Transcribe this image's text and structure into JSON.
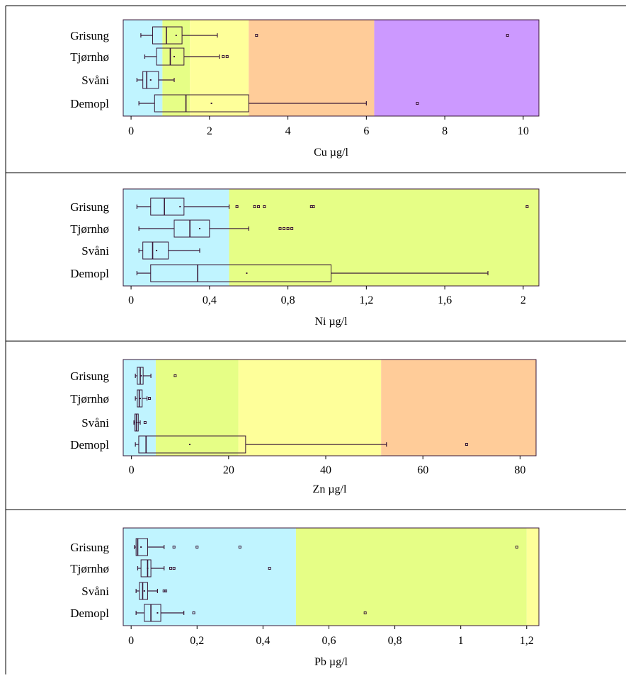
{
  "colors": {
    "blue": "#c0f4ff",
    "green": "#e6fe86",
    "yellow": "#feff9a",
    "orange": "#ffcc99",
    "purple": "#cc99ff",
    "box_stroke": "#3a1838"
  },
  "chart_data": [
    {
      "type": "box",
      "xlabel": "Cu µg/l",
      "xlim": [
        -0.2,
        10.4
      ],
      "ticks": [
        0,
        2,
        4,
        6,
        8,
        10
      ],
      "tick_labels": [
        "0",
        "2",
        "4",
        "6",
        "8",
        "10"
      ],
      "bands": [
        {
          "from": -0.2,
          "to": 0.8,
          "color": "blue"
        },
        {
          "from": 0.8,
          "to": 1.5,
          "color": "green"
        },
        {
          "from": 1.5,
          "to": 3.0,
          "color": "yellow"
        },
        {
          "from": 3.0,
          "to": 6.2,
          "color": "orange"
        },
        {
          "from": 6.2,
          "to": 10.4,
          "color": "purple"
        }
      ],
      "categories": [
        {
          "label": "Grisung",
          "whisker_low": 0.25,
          "q1": 0.55,
          "median": 0.9,
          "q3": 1.3,
          "whisker_high": 2.2,
          "mean": 1.15,
          "outliers": [
            3.2,
            9.6
          ]
        },
        {
          "label": "Tjørnhø",
          "whisker_low": 0.35,
          "q1": 0.65,
          "median": 1.0,
          "q3": 1.35,
          "whisker_high": 2.25,
          "mean": 1.1,
          "outliers": [
            2.35,
            2.45
          ]
        },
        {
          "label": "Svåni",
          "whisker_low": 0.15,
          "q1": 0.3,
          "median": 0.4,
          "q3": 0.7,
          "whisker_high": 1.1,
          "mean": 0.5,
          "outliers": []
        },
        {
          "label": "Demopl",
          "whisker_low": 0.2,
          "q1": 0.6,
          "median": 1.4,
          "q3": 3.0,
          "whisker_high": 6.0,
          "mean": 2.05,
          "outliers": [
            7.3
          ]
        }
      ]
    },
    {
      "type": "box",
      "xlabel": "Ni µg/l",
      "xlim": [
        -0.04,
        2.08
      ],
      "ticks": [
        0,
        0.4,
        0.8,
        1.2,
        1.6,
        2
      ],
      "tick_labels": [
        "0",
        "0,4",
        "0,8",
        "1,2",
        "1,6",
        "2"
      ],
      "bands": [
        {
          "from": -0.04,
          "to": 0.5,
          "color": "blue"
        },
        {
          "from": 0.5,
          "to": 2.08,
          "color": "green"
        }
      ],
      "categories": [
        {
          "label": "Grisung",
          "whisker_low": 0.03,
          "q1": 0.1,
          "median": 0.17,
          "q3": 0.27,
          "whisker_high": 0.5,
          "mean": 0.25,
          "outliers": [
            0.54,
            0.63,
            0.65,
            0.68,
            0.92,
            0.93,
            2.02
          ]
        },
        {
          "label": "Tjørnhø",
          "whisker_low": 0.04,
          "q1": 0.22,
          "median": 0.3,
          "q3": 0.4,
          "whisker_high": 0.6,
          "mean": 0.35,
          "outliers": [
            0.76,
            0.78,
            0.8,
            0.82
          ]
        },
        {
          "label": "Svåni",
          "whisker_low": 0.04,
          "q1": 0.06,
          "median": 0.11,
          "q3": 0.19,
          "whisker_high": 0.35,
          "mean": 0.13,
          "outliers": []
        },
        {
          "label": "Demopl",
          "whisker_low": 0.03,
          "q1": 0.1,
          "median": 0.34,
          "q3": 1.02,
          "whisker_high": 1.82,
          "mean": 0.59,
          "outliers": []
        }
      ]
    },
    {
      "type": "box",
      "xlabel": "Zn µg/l",
      "xlim": [
        -1.7,
        83.3
      ],
      "ticks": [
        0,
        20,
        40,
        60,
        80
      ],
      "tick_labels": [
        "0",
        "20",
        "40",
        "60",
        "80"
      ],
      "bands": [
        {
          "from": -1.7,
          "to": 5.0,
          "color": "blue"
        },
        {
          "from": 5.0,
          "to": 22.0,
          "color": "green"
        },
        {
          "from": 22.0,
          "to": 51.4,
          "color": "yellow"
        },
        {
          "from": 51.4,
          "to": 83.3,
          "color": "orange"
        }
      ],
      "categories": [
        {
          "label": "Grisung",
          "whisker_low": 0.8,
          "q1": 1.2,
          "median": 1.8,
          "q3": 2.4,
          "whisker_high": 4.0,
          "mean": 2.0,
          "outliers": [
            9.0
          ]
        },
        {
          "label": "Tjørnhø",
          "whisker_low": 0.8,
          "q1": 1.2,
          "median": 1.6,
          "q3": 2.2,
          "whisker_high": 3.2,
          "mean": 1.8,
          "outliers": [
            3.7
          ]
        },
        {
          "label": "Svåni",
          "whisker_low": 0.5,
          "q1": 0.7,
          "median": 1.0,
          "q3": 1.4,
          "whisker_high": 1.8,
          "mean": 1.1,
          "outliers": [
            2.8
          ]
        },
        {
          "label": "Demopl",
          "whisker_low": 0.8,
          "q1": 1.5,
          "median": 3.0,
          "q3": 23.5,
          "whisker_high": 52.5,
          "mean": 12.0,
          "outliers": [
            69.0
          ]
        }
      ]
    },
    {
      "type": "box",
      "xlabel": "Pb µg/l",
      "xlim": [
        -0.024,
        1.237
      ],
      "ticks": [
        0,
        0.2,
        0.4,
        0.6,
        0.8,
        1,
        1.2
      ],
      "tick_labels": [
        "0",
        "0,2",
        "0,4",
        "0,6",
        "0,8",
        "1",
        "1,2"
      ],
      "bands": [
        {
          "from": -0.024,
          "to": 0.5,
          "color": "blue"
        },
        {
          "from": 0.5,
          "to": 1.2,
          "color": "green"
        },
        {
          "from": 1.2,
          "to": 1.237,
          "color": "yellow"
        }
      ],
      "categories": [
        {
          "label": "Grisung",
          "whisker_low": 0.01,
          "q1": 0.015,
          "median": 0.02,
          "q3": 0.05,
          "whisker_high": 0.1,
          "mean": 0.03,
          "outliers": [
            0.13,
            0.2,
            0.33,
            1.17
          ]
        },
        {
          "label": "Tjørnhø",
          "whisker_low": 0.02,
          "q1": 0.03,
          "median": 0.05,
          "q3": 0.06,
          "whisker_high": 0.1,
          "mean": 0.05,
          "outliers": [
            0.12,
            0.13,
            0.42
          ]
        },
        {
          "label": "Svåni",
          "whisker_low": 0.015,
          "q1": 0.025,
          "median": 0.035,
          "q3": 0.05,
          "whisker_high": 0.08,
          "mean": 0.04,
          "outliers": [
            0.1,
            0.105
          ]
        },
        {
          "label": "Demopl",
          "whisker_low": 0.015,
          "q1": 0.04,
          "median": 0.06,
          "q3": 0.09,
          "whisker_high": 0.16,
          "mean": 0.08,
          "outliers": [
            0.19,
            0.71
          ]
        }
      ]
    }
  ]
}
